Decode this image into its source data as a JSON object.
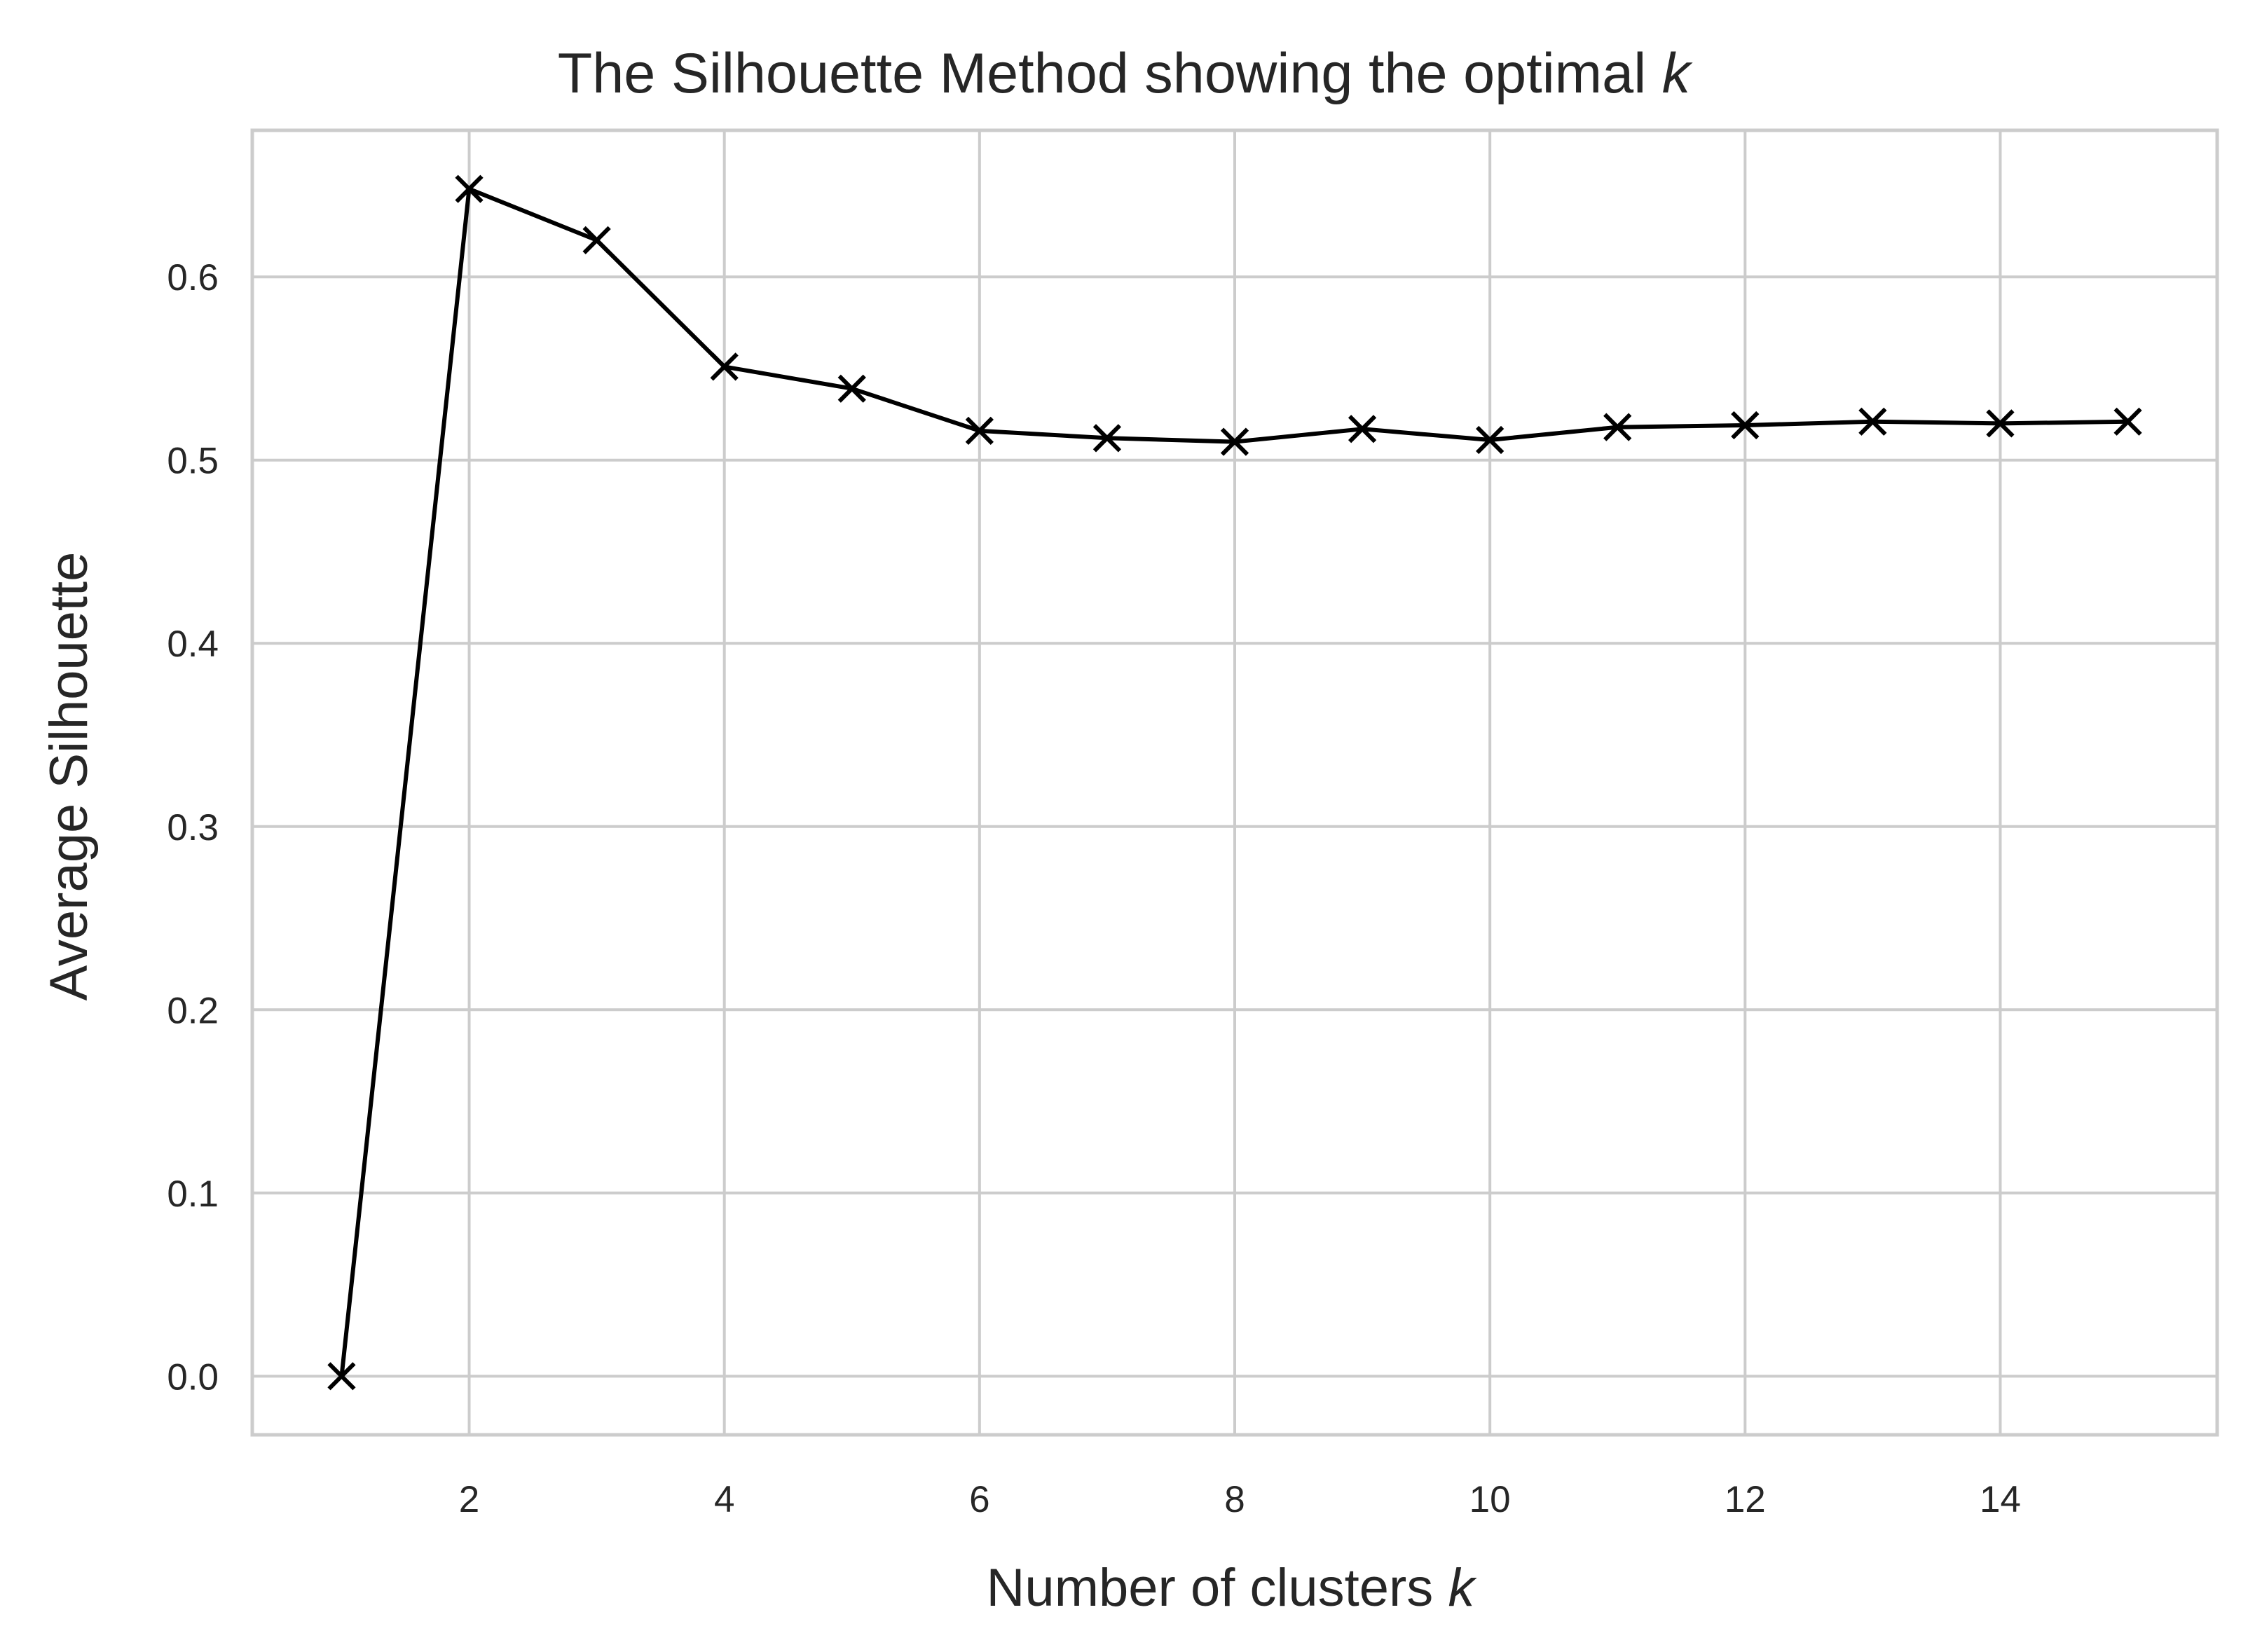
{
  "chart_data": {
    "type": "line",
    "title": "The Silhouette Method showing the optimal",
    "title_var": "k",
    "xlabel": "Number of clusters",
    "xlabel_var": "k",
    "ylabel": "Average Silhouette",
    "x": [
      1,
      2,
      3,
      4,
      5,
      6,
      7,
      8,
      9,
      10,
      11,
      12,
      13,
      14,
      15
    ],
    "series": [
      {
        "values": [
          0.0,
          0.648,
          0.62,
          0.551,
          0.539,
          0.516,
          0.512,
          0.51,
          0.517,
          0.511,
          0.518,
          0.519,
          0.521,
          0.52,
          0.521
        ],
        "color": "#000000",
        "marker": "x"
      }
    ],
    "xlim": [
      0.3,
      15.7
    ],
    "ylim": [
      -0.032,
      0.68
    ],
    "x_ticks": [
      2,
      4,
      6,
      8,
      10,
      12,
      14
    ],
    "x_tick_labels": [
      "2",
      "4",
      "6",
      "8",
      "10",
      "12",
      "14"
    ],
    "y_ticks": [
      0.0,
      0.1,
      0.2,
      0.3,
      0.4,
      0.5,
      0.6
    ],
    "y_tick_labels": [
      "0.0",
      "0.1",
      "0.2",
      "0.3",
      "0.4",
      "0.5",
      "0.6"
    ],
    "grid": true,
    "grid_color": "#cccccc",
    "legend": "none"
  }
}
